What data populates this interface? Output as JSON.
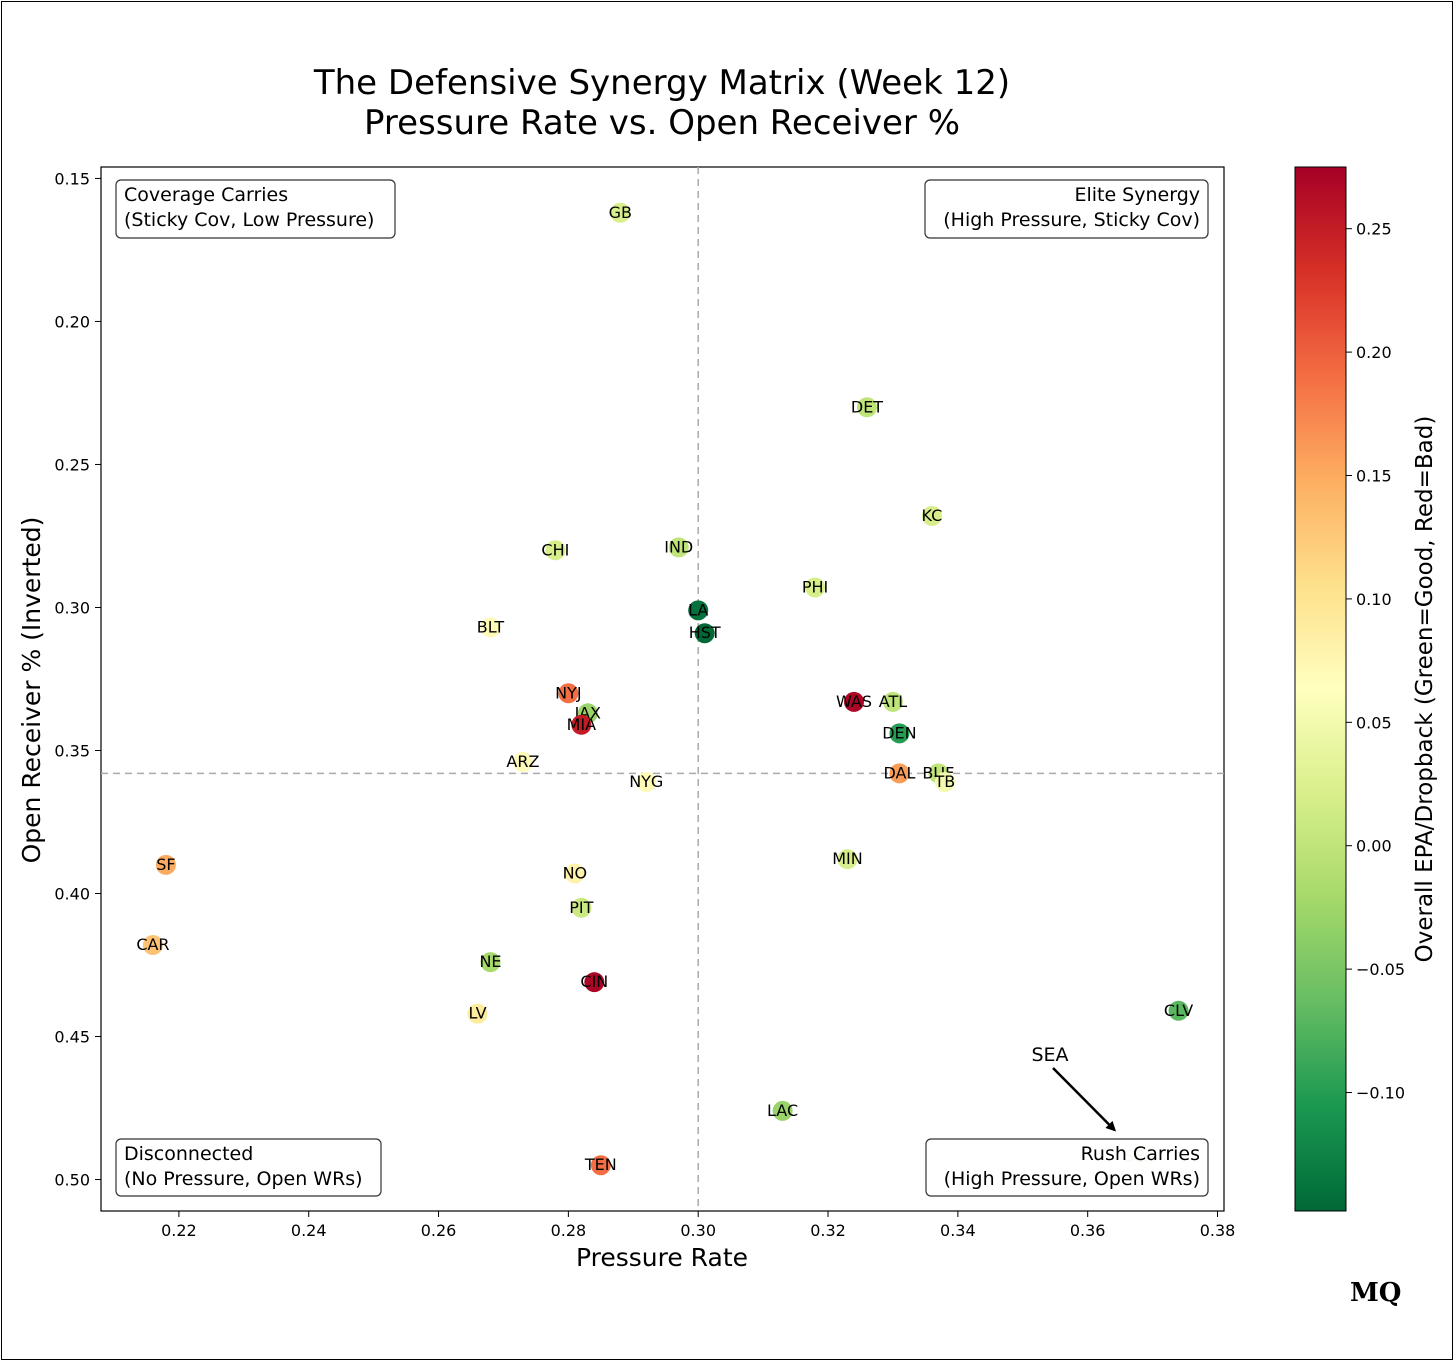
{
  "chart_data": {
    "type": "scatter",
    "title": [
      "The Defensive Synergy Matrix (Week 12)",
      "Pressure Rate vs. Open Receiver %"
    ],
    "xlabel": "Pressure Rate",
    "ylabel": "Open Receiver % (Inverted)",
    "xlim": [
      0.208,
      0.381
    ],
    "ylim": [
      0.146,
      0.511
    ],
    "y_inverted": true,
    "x_ticks": [
      "0.22",
      "0.24",
      "0.26",
      "0.28",
      "0.30",
      "0.32",
      "0.34",
      "0.36",
      "0.38"
    ],
    "y_ticks": [
      "0.15",
      "0.20",
      "0.25",
      "0.30",
      "0.35",
      "0.40",
      "0.45",
      "0.50"
    ],
    "x_tick_values": [
      0.22,
      0.24,
      0.26,
      0.28,
      0.3,
      0.32,
      0.34,
      0.36,
      0.38
    ],
    "y_tick_values": [
      0.15,
      0.2,
      0.25,
      0.3,
      0.35,
      0.4,
      0.45,
      0.5
    ],
    "ref_lines": {
      "x": 0.3,
      "y": 0.358
    },
    "grid": false,
    "colorbar": {
      "label": "Overall EPA/Dropback (Green=Good, Red=Bad)",
      "min": -0.148,
      "max": 0.275,
      "ticks": [
        "−0.10",
        "−0.05",
        "0.00",
        "0.05",
        "0.10",
        "0.15",
        "0.20",
        "0.25"
      ],
      "tick_values": [
        -0.1,
        -0.05,
        0.0,
        0.05,
        0.1,
        0.15,
        0.2,
        0.25
      ],
      "colormap": "RdYlGn_r"
    },
    "quadrants": [
      {
        "pos": "top-left",
        "lines": [
          "Coverage Carries",
          "(Sticky Cov, Low Pressure)"
        ]
      },
      {
        "pos": "top-right",
        "lines": [
          "Elite Synergy",
          "(High Pressure, Sticky Cov)"
        ]
      },
      {
        "pos": "bottom-left",
        "lines": [
          "Disconnected",
          "(No Pressure, Open WRs)"
        ]
      },
      {
        "pos": "bottom-right",
        "lines": [
          "Rush Carries",
          "(High Pressure, Open WRs)"
        ]
      }
    ],
    "annotation": {
      "text": "SEA",
      "target_x": 0.366,
      "target_y": 0.489
    },
    "points": [
      {
        "team": "GB",
        "x": 0.288,
        "y": 0.162,
        "epa": 0.02
      },
      {
        "team": "DET",
        "x": 0.326,
        "y": 0.23,
        "epa": 0.0
      },
      {
        "team": "KC",
        "x": 0.336,
        "y": 0.268,
        "epa": 0.02
      },
      {
        "team": "CHI",
        "x": 0.278,
        "y": 0.28,
        "epa": 0.02
      },
      {
        "team": "IND",
        "x": 0.297,
        "y": 0.279,
        "epa": 0.0
      },
      {
        "team": "PHI",
        "x": 0.318,
        "y": 0.293,
        "epa": 0.02
      },
      {
        "team": "LA",
        "x": 0.3,
        "y": 0.301,
        "epa": -0.14
      },
      {
        "team": "HST",
        "x": 0.301,
        "y": 0.309,
        "epa": -0.15
      },
      {
        "team": "BLT",
        "x": 0.268,
        "y": 0.307,
        "epa": 0.07
      },
      {
        "team": "NYJ",
        "x": 0.28,
        "y": 0.33,
        "epa": 0.19
      },
      {
        "team": "JAX",
        "x": 0.283,
        "y": 0.337,
        "epa": -0.03
      },
      {
        "team": "MIA",
        "x": 0.282,
        "y": 0.341,
        "epa": 0.25
      },
      {
        "team": "WAS",
        "x": 0.324,
        "y": 0.333,
        "epa": 0.27
      },
      {
        "team": "ATL",
        "x": 0.33,
        "y": 0.333,
        "epa": 0.0
      },
      {
        "team": "DEN",
        "x": 0.331,
        "y": 0.344,
        "epa": -0.1
      },
      {
        "team": "ARZ",
        "x": 0.273,
        "y": 0.354,
        "epa": 0.07
      },
      {
        "team": "NYG",
        "x": 0.292,
        "y": 0.361,
        "epa": 0.07
      },
      {
        "team": "DAL",
        "x": 0.331,
        "y": 0.358,
        "epa": 0.16
      },
      {
        "team": "BUF",
        "x": 0.337,
        "y": 0.358,
        "epa": 0.0
      },
      {
        "team": "TB",
        "x": 0.338,
        "y": 0.361,
        "epa": 0.05
      },
      {
        "team": "MIN",
        "x": 0.323,
        "y": 0.388,
        "epa": 0.02
      },
      {
        "team": "SF",
        "x": 0.218,
        "y": 0.39,
        "epa": 0.15
      },
      {
        "team": "NO",
        "x": 0.281,
        "y": 0.393,
        "epa": 0.08
      },
      {
        "team": "PIT",
        "x": 0.282,
        "y": 0.405,
        "epa": 0.01
      },
      {
        "team": "CAR",
        "x": 0.216,
        "y": 0.418,
        "epa": 0.13
      },
      {
        "team": "NE",
        "x": 0.268,
        "y": 0.424,
        "epa": -0.02
      },
      {
        "team": "CIN",
        "x": 0.284,
        "y": 0.431,
        "epa": 0.27
      },
      {
        "team": "LV",
        "x": 0.266,
        "y": 0.442,
        "epa": 0.09
      },
      {
        "team": "CLV",
        "x": 0.374,
        "y": 0.441,
        "epa": -0.07
      },
      {
        "team": "LAC",
        "x": 0.313,
        "y": 0.476,
        "epa": -0.03
      },
      {
        "team": "TEN",
        "x": 0.285,
        "y": 0.495,
        "epa": 0.19
      },
      {
        "team": "SEA",
        "x": 0.368,
        "y": 0.492,
        "epa": 0.06
      }
    ]
  },
  "watermark": {
    "text": "MQ"
  }
}
